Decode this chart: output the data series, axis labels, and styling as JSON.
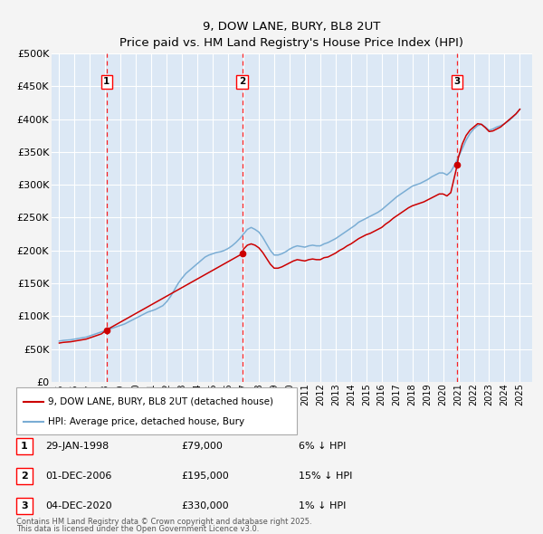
{
  "title": "9, DOW LANE, BURY, BL8 2UT",
  "subtitle": "Price paid vs. HM Land Registry's House Price Index (HPI)",
  "ylim": [
    0,
    500000
  ],
  "yticks": [
    0,
    50000,
    100000,
    150000,
    200000,
    250000,
    300000,
    350000,
    400000,
    450000,
    500000
  ],
  "ytick_labels": [
    "£0",
    "£50K",
    "£100K",
    "£150K",
    "£200K",
    "£250K",
    "£300K",
    "£350K",
    "£400K",
    "£450K",
    "£500K"
  ],
  "xlim_start": 1994.5,
  "xlim_end": 2025.8,
  "xticks": [
    1995,
    1996,
    1997,
    1998,
    1999,
    2000,
    2001,
    2002,
    2003,
    2004,
    2005,
    2006,
    2007,
    2008,
    2009,
    2010,
    2011,
    2012,
    2013,
    2014,
    2015,
    2016,
    2017,
    2018,
    2019,
    2020,
    2021,
    2022,
    2023,
    2024,
    2025
  ],
  "background_color": "#dce8f5",
  "fig_bg_color": "#f4f4f4",
  "grid_color": "#ffffff",
  "sale_color": "#cc0000",
  "hpi_color": "#7aadd4",
  "sale_label": "9, DOW LANE, BURY, BL8 2UT (detached house)",
  "hpi_label": "HPI: Average price, detached house, Bury",
  "transactions": [
    {
      "num": 1,
      "date": "29-JAN-1998",
      "price": 79000,
      "hpi_diff": "6% ↓ HPI",
      "year": 1998.08
    },
    {
      "num": 2,
      "date": "01-DEC-2006",
      "price": 195000,
      "hpi_diff": "15% ↓ HPI",
      "year": 2006.92
    },
    {
      "num": 3,
      "date": "04-DEC-2020",
      "price": 330000,
      "hpi_diff": "1% ↓ HPI",
      "year": 2020.92
    }
  ],
  "footnote_line1": "Contains HM Land Registry data © Crown copyright and database right 2025.",
  "footnote_line2": "This data is licensed under the Open Government Licence v3.0.",
  "hpi_data_years": [
    1995.0,
    1995.25,
    1995.5,
    1995.75,
    1996.0,
    1996.25,
    1996.5,
    1996.75,
    1997.0,
    1997.25,
    1997.5,
    1997.75,
    1998.0,
    1998.25,
    1998.5,
    1998.75,
    1999.0,
    1999.25,
    1999.5,
    1999.75,
    2000.0,
    2000.25,
    2000.5,
    2000.75,
    2001.0,
    2001.25,
    2001.5,
    2001.75,
    2002.0,
    2002.25,
    2002.5,
    2002.75,
    2003.0,
    2003.25,
    2003.5,
    2003.75,
    2004.0,
    2004.25,
    2004.5,
    2004.75,
    2005.0,
    2005.25,
    2005.5,
    2005.75,
    2006.0,
    2006.25,
    2006.5,
    2006.75,
    2007.0,
    2007.25,
    2007.5,
    2007.75,
    2008.0,
    2008.25,
    2008.5,
    2008.75,
    2009.0,
    2009.25,
    2009.5,
    2009.75,
    2010.0,
    2010.25,
    2010.5,
    2010.75,
    2011.0,
    2011.25,
    2011.5,
    2011.75,
    2012.0,
    2012.25,
    2012.5,
    2012.75,
    2013.0,
    2013.25,
    2013.5,
    2013.75,
    2014.0,
    2014.25,
    2014.5,
    2014.75,
    2015.0,
    2015.25,
    2015.5,
    2015.75,
    2016.0,
    2016.25,
    2016.5,
    2016.75,
    2017.0,
    2017.25,
    2017.5,
    2017.75,
    2018.0,
    2018.25,
    2018.5,
    2018.75,
    2019.0,
    2019.25,
    2019.5,
    2019.75,
    2020.0,
    2020.25,
    2020.5,
    2020.75,
    2021.0,
    2021.25,
    2021.5,
    2021.75,
    2022.0,
    2022.25,
    2022.5,
    2022.75,
    2023.0,
    2023.25,
    2023.5,
    2023.75,
    2024.0,
    2024.25,
    2024.5,
    2024.75,
    2025.0
  ],
  "hpi_data_values": [
    62000,
    63000,
    63500,
    64000,
    65000,
    66000,
    67000,
    68000,
    70000,
    72000,
    74000,
    76000,
    78000,
    80000,
    82000,
    84000,
    86000,
    88000,
    91000,
    94000,
    97000,
    100000,
    103000,
    106000,
    108000,
    110000,
    113000,
    116000,
    122000,
    130000,
    140000,
    150000,
    158000,
    165000,
    170000,
    175000,
    180000,
    185000,
    190000,
    193000,
    195000,
    197000,
    198000,
    200000,
    203000,
    207000,
    212000,
    218000,
    225000,
    232000,
    235000,
    232000,
    228000,
    220000,
    210000,
    200000,
    193000,
    193000,
    195000,
    198000,
    202000,
    205000,
    207000,
    206000,
    205000,
    207000,
    208000,
    207000,
    207000,
    210000,
    212000,
    215000,
    218000,
    222000,
    226000,
    230000,
    234000,
    238000,
    243000,
    246000,
    249000,
    252000,
    255000,
    258000,
    262000,
    267000,
    272000,
    277000,
    282000,
    286000,
    290000,
    294000,
    298000,
    300000,
    302000,
    305000,
    308000,
    312000,
    315000,
    318000,
    318000,
    315000,
    320000,
    330000,
    342000,
    355000,
    368000,
    378000,
    385000,
    390000,
    392000,
    388000,
    383000,
    385000,
    388000,
    390000,
    393000,
    397000,
    402000,
    408000,
    415000
  ],
  "sale_years": [
    1995.0,
    1995.25,
    1995.5,
    1995.75,
    1996.0,
    1996.25,
    1996.5,
    1996.75,
    1997.0,
    1997.25,
    1997.5,
    1997.75,
    1998.08,
    2006.92,
    2007.0,
    2007.25,
    2007.5,
    2007.75,
    2008.0,
    2008.25,
    2008.5,
    2008.75,
    2009.0,
    2009.25,
    2009.5,
    2009.75,
    2010.0,
    2010.25,
    2010.5,
    2010.75,
    2011.0,
    2011.25,
    2011.5,
    2011.75,
    2012.0,
    2012.25,
    2012.5,
    2012.75,
    2013.0,
    2013.25,
    2013.5,
    2013.75,
    2014.0,
    2014.25,
    2014.5,
    2014.75,
    2015.0,
    2015.25,
    2015.5,
    2015.75,
    2016.0,
    2016.25,
    2016.5,
    2016.75,
    2017.0,
    2017.25,
    2017.5,
    2017.75,
    2018.0,
    2018.25,
    2018.5,
    2018.75,
    2019.0,
    2019.25,
    2019.5,
    2019.75,
    2020.0,
    2020.25,
    2020.5,
    2020.92,
    2021.0,
    2021.25,
    2021.5,
    2021.75,
    2022.0,
    2022.25,
    2022.5,
    2022.75,
    2023.0,
    2023.25,
    2023.5,
    2023.75,
    2024.0,
    2024.25,
    2024.5,
    2024.75,
    2025.0
  ],
  "sale_values": [
    59000,
    60000,
    60500,
    61000,
    62000,
    63000,
    64000,
    65000,
    67000,
    69000,
    71000,
    73000,
    79000,
    195000,
    202000,
    208000,
    210000,
    208000,
    204000,
    197000,
    188000,
    179000,
    173000,
    173000,
    175000,
    178000,
    181000,
    184000,
    186000,
    185000,
    184000,
    186000,
    187000,
    186000,
    186000,
    189000,
    190000,
    193000,
    196000,
    200000,
    203000,
    207000,
    210000,
    214000,
    218000,
    221000,
    224000,
    226000,
    229000,
    232000,
    235000,
    240000,
    244000,
    249000,
    253000,
    257000,
    261000,
    265000,
    268000,
    270000,
    272000,
    274000,
    277000,
    280000,
    283000,
    286000,
    286000,
    283000,
    288000,
    330000,
    342000,
    362000,
    375000,
    383000,
    388000,
    393000,
    392000,
    387000,
    381000,
    382000,
    385000,
    388000,
    393000,
    398000,
    403000,
    408000,
    415000
  ]
}
